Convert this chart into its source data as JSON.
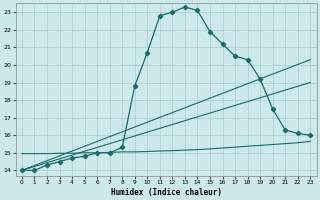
{
  "xlabel": "Humidex (Indice chaleur)",
  "xlim": [
    -0.5,
    23.5
  ],
  "ylim": [
    13.7,
    23.5
  ],
  "xticks": [
    0,
    1,
    2,
    3,
    4,
    5,
    6,
    7,
    8,
    9,
    10,
    11,
    12,
    13,
    14,
    15,
    16,
    17,
    18,
    19,
    20,
    21,
    22,
    23
  ],
  "yticks": [
    14,
    15,
    16,
    17,
    18,
    19,
    20,
    21,
    22,
    23
  ],
  "background_color": "#cce8ea",
  "grid_color": "#aaccce",
  "line_color": "#1a6b6b",
  "line1_x": [
    0,
    1,
    2,
    3,
    4,
    5,
    6,
    7,
    8,
    9,
    10,
    11,
    12,
    13,
    14,
    15,
    16,
    17,
    18,
    19,
    20,
    21,
    22,
    23
  ],
  "line1_y": [
    14.0,
    14.0,
    14.3,
    14.5,
    14.7,
    14.8,
    15.0,
    15.0,
    15.3,
    18.8,
    20.7,
    22.8,
    23.0,
    23.3,
    23.1,
    21.9,
    21.2,
    20.5,
    20.3,
    19.2,
    17.5,
    16.3,
    16.1,
    16.0
  ],
  "line2_x": [
    0,
    23
  ],
  "line2_y": [
    14.0,
    20.3
  ],
  "line3_x": [
    0,
    23
  ],
  "line3_y": [
    14.0,
    19.0
  ],
  "line4_x": [
    0,
    1,
    2,
    3,
    4,
    5,
    6,
    7,
    8,
    9,
    10,
    11,
    12,
    13,
    14,
    15,
    16,
    17,
    18,
    19,
    20,
    21,
    22,
    23
  ],
  "line4_y": [
    14.95,
    14.95,
    14.95,
    14.97,
    14.97,
    15.0,
    15.0,
    15.02,
    15.05,
    15.05,
    15.07,
    15.1,
    15.12,
    15.15,
    15.18,
    15.22,
    15.27,
    15.32,
    15.37,
    15.42,
    15.47,
    15.52,
    15.57,
    15.65
  ]
}
